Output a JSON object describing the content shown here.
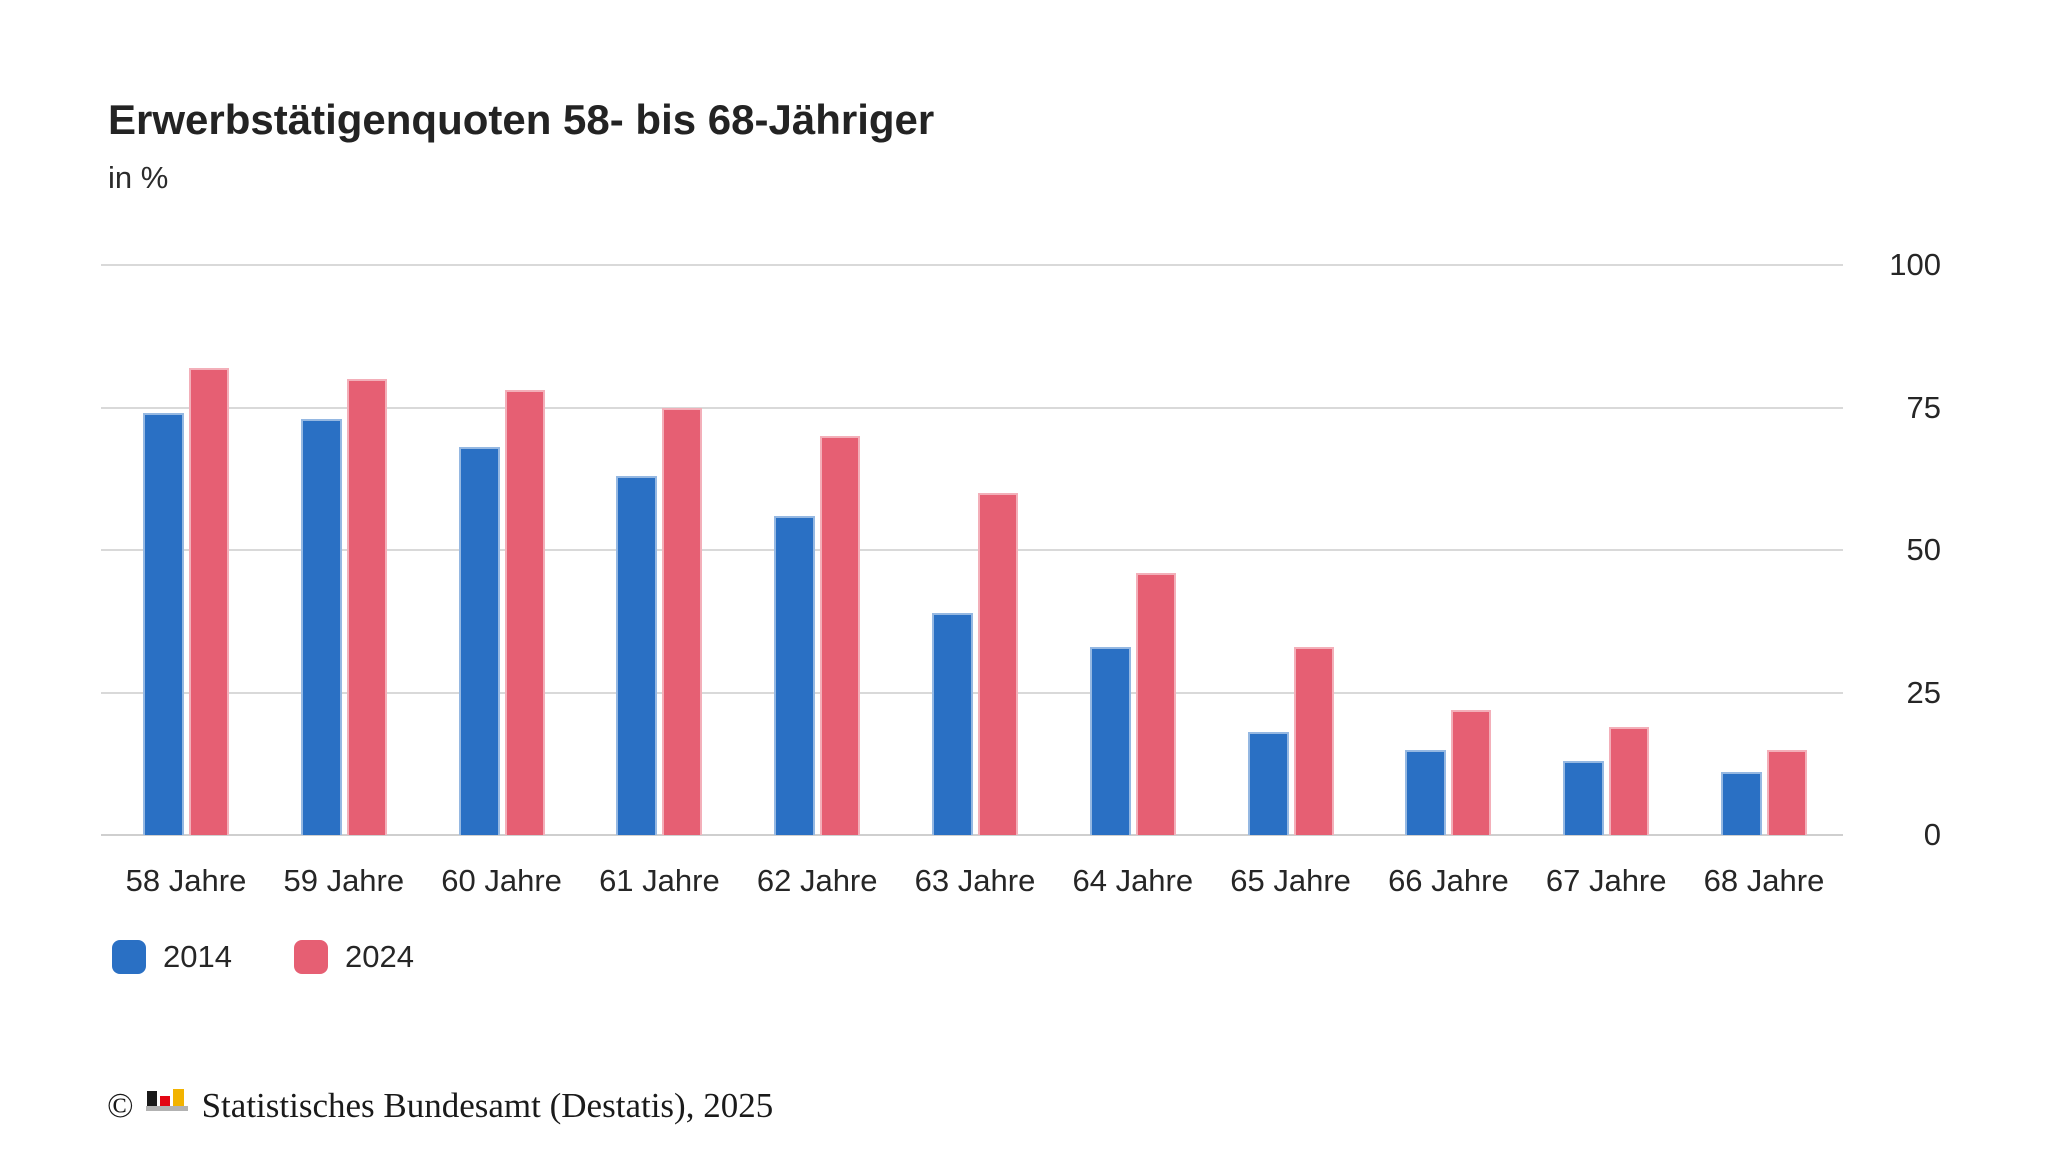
{
  "header": {
    "title": "Erwerbstätigenquoten 58- bis 68-Jähriger",
    "subtitle": "in %"
  },
  "chart_data": {
    "type": "bar",
    "title": "Erwerbstätigenquoten 58- bis 68-Jähriger",
    "unit_label": "in %",
    "categories": [
      "58 Jahre",
      "59 Jahre",
      "60 Jahre",
      "61 Jahre",
      "62 Jahre",
      "63 Jahre",
      "64 Jahre",
      "65 Jahre",
      "66 Jahre",
      "67 Jahre",
      "68 Jahre"
    ],
    "series": [
      {
        "name": "2014",
        "color": "#2a70c4",
        "values": [
          74,
          73,
          68,
          63,
          56,
          39,
          33,
          18,
          15,
          13,
          11
        ]
      },
      {
        "name": "2024",
        "color": "#e65f73",
        "values": [
          82,
          80,
          78,
          75,
          70,
          60,
          46,
          33,
          22,
          19,
          15
        ]
      }
    ],
    "y_axis": {
      "ticks": [
        0,
        25,
        50,
        75,
        100
      ],
      "min": 0,
      "max": 100,
      "position": "right"
    },
    "x_axis": {
      "label": ""
    },
    "grid": true,
    "legend_position": "bottom-left",
    "gridline_color": "#d9d9d9",
    "baseline_color": "#cfcfcf"
  },
  "footer": {
    "copyright_symbol": "©",
    "source_text": "Statistisches Bundesamt (Destatis), 2025",
    "logo_icon": "destatis-bar-chart-icon",
    "logo_colors": {
      "black": "#1a1a1a",
      "red": "#e30613",
      "gold": "#f2b300",
      "base_gray": "#b2b2b2"
    }
  }
}
